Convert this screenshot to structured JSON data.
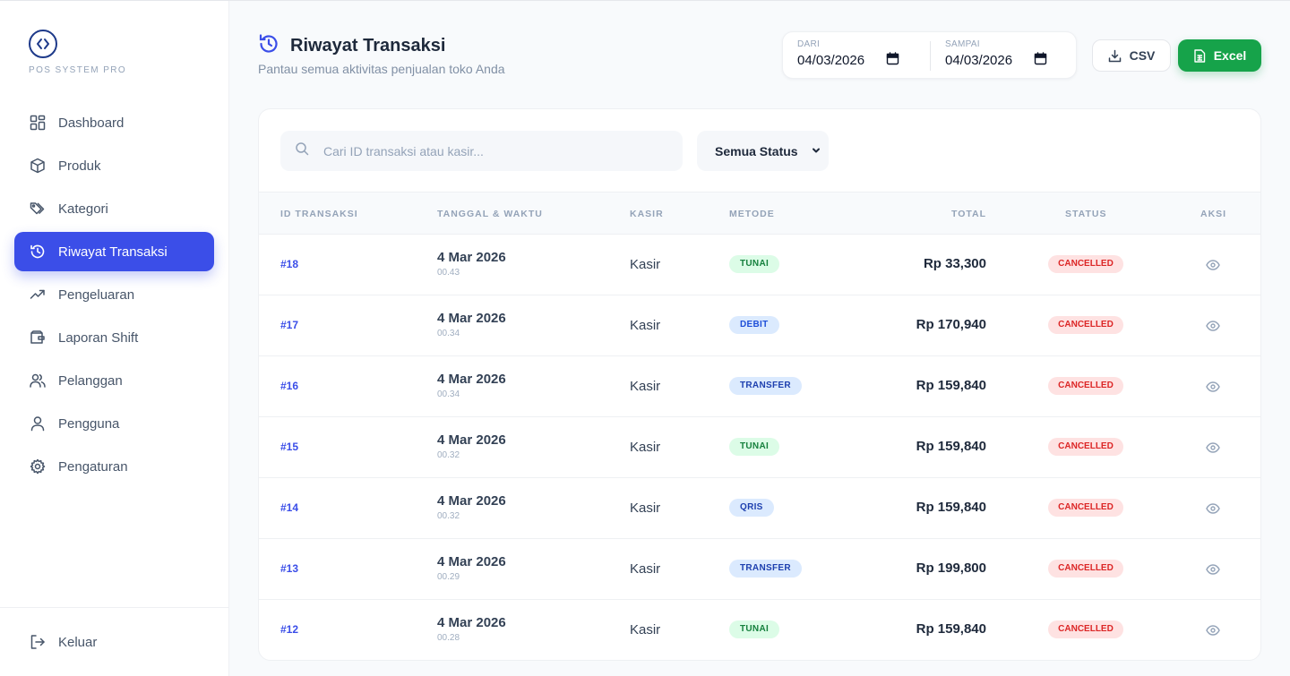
{
  "app": {
    "logo_text": "POS SYSTEM PRO"
  },
  "sidebar": {
    "items": [
      {
        "label": "Dashboard",
        "icon": "dashboard-icon",
        "active": false
      },
      {
        "label": "Produk",
        "icon": "box-icon",
        "active": false
      },
      {
        "label": "Kategori",
        "icon": "tags-icon",
        "active": false
      },
      {
        "label": "Riwayat Transaksi",
        "icon": "history-icon",
        "active": true
      },
      {
        "label": "Pengeluaran",
        "icon": "trending-icon",
        "active": false
      },
      {
        "label": "Laporan Shift",
        "icon": "wallet-icon",
        "active": false
      },
      {
        "label": "Pelanggan",
        "icon": "users-icon",
        "active": false
      },
      {
        "label": "Pengguna",
        "icon": "user-icon",
        "active": false
      },
      {
        "label": "Pengaturan",
        "icon": "gear-icon",
        "active": false
      }
    ],
    "logout_label": "Keluar"
  },
  "header": {
    "title": "Riwayat Transaksi",
    "subtitle": "Pantau semua aktivitas penjualan toko Anda",
    "date_from_label": "DARI",
    "date_from_value": "04/03/2026",
    "date_to_label": "SAMPAI",
    "date_to_value": "04/03/2026",
    "csv_label": "CSV",
    "excel_label": "Excel"
  },
  "filters": {
    "search_placeholder": "Cari ID transaksi atau kasir...",
    "status_value": "Semua Status"
  },
  "table": {
    "headers": {
      "id": "ID TRANSAKSI",
      "date": "TANGGAL & WAKTU",
      "kasir": "KASIR",
      "metode": "METODE",
      "total": "TOTAL",
      "status": "STATUS",
      "aksi": "AKSI"
    },
    "rows": [
      {
        "id": "#18",
        "date": "4 Mar 2026",
        "time": "00.43",
        "kasir": "Kasir",
        "method": "TUNAI",
        "method_type": "tunai",
        "total": "Rp 33,300",
        "status": "CANCELLED"
      },
      {
        "id": "#17",
        "date": "4 Mar 2026",
        "time": "00.34",
        "kasir": "Kasir",
        "method": "DEBIT",
        "method_type": "debit",
        "total": "Rp 170,940",
        "status": "CANCELLED"
      },
      {
        "id": "#16",
        "date": "4 Mar 2026",
        "time": "00.34",
        "kasir": "Kasir",
        "method": "TRANSFER",
        "method_type": "transfer",
        "total": "Rp 159,840",
        "status": "CANCELLED"
      },
      {
        "id": "#15",
        "date": "4 Mar 2026",
        "time": "00.32",
        "kasir": "Kasir",
        "method": "TUNAI",
        "method_type": "tunai",
        "total": "Rp 159,840",
        "status": "CANCELLED"
      },
      {
        "id": "#14",
        "date": "4 Mar 2026",
        "time": "00.32",
        "kasir": "Kasir",
        "method": "QRIS",
        "method_type": "qris",
        "total": "Rp 159,840",
        "status": "CANCELLED"
      },
      {
        "id": "#13",
        "date": "4 Mar 2026",
        "time": "00.29",
        "kasir": "Kasir",
        "method": "TRANSFER",
        "method_type": "transfer",
        "total": "Rp 199,800",
        "status": "CANCELLED"
      },
      {
        "id": "#12",
        "date": "4 Mar 2026",
        "time": "00.28",
        "kasir": "Kasir",
        "method": "TUNAI",
        "method_type": "tunai",
        "total": "Rp 159,840",
        "status": "CANCELLED"
      }
    ]
  },
  "colors": {
    "accent": "#3b4ee8",
    "excel": "#16a34a",
    "cancelled_bg": "#fee2e2",
    "cancelled_text": "#dc2626"
  }
}
